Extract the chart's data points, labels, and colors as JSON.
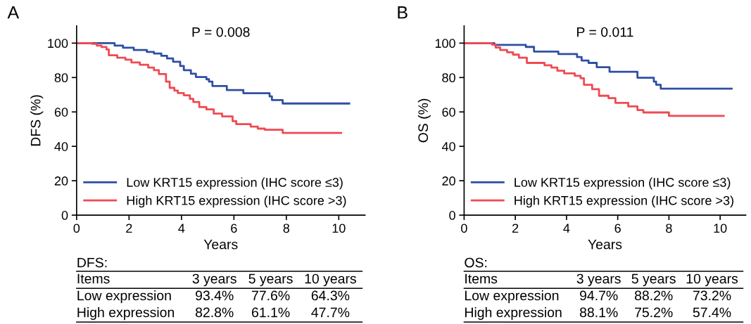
{
  "chart_data": [
    {
      "type": "step",
      "title": "A",
      "xlabel": "Years",
      "ylabel": "DFS (%)",
      "xlim": [
        0,
        11
      ],
      "ylim": [
        0,
        110
      ],
      "xticks": [
        0,
        2,
        4,
        6,
        8,
        10
      ],
      "yticks": [
        0,
        20,
        40,
        60,
        80,
        100
      ],
      "grid": false,
      "legend": "bottom left",
      "series": [
        {
          "name": "Low KRT15 expression (IHC score ≤3)",
          "color": "#2f4fa3",
          "x": [
            0,
            1.45,
            1.77,
            2.18,
            2.68,
            2.95,
            3.23,
            3.45,
            3.68,
            3.95,
            4.09,
            4.36,
            4.55,
            4.95,
            5.05,
            5.18,
            5.73,
            6.36,
            7.36,
            7.45,
            7.86,
            10.4
          ],
          "values": [
            100,
            98.6,
            97.3,
            96.0,
            94.9,
            94.0,
            92.6,
            91.1,
            89.2,
            86.7,
            84.3,
            82.2,
            80.3,
            79.0,
            77.6,
            75.1,
            72.7,
            70.9,
            69.0,
            66.9,
            64.9,
            64.9
          ]
        },
        {
          "name": "High KRT15 expression (IHC score >3)",
          "color": "#ef4a52",
          "x": [
            0,
            0.59,
            0.77,
            0.95,
            1.14,
            1.23,
            1.55,
            1.86,
            2.09,
            2.41,
            2.73,
            2.95,
            3.14,
            3.41,
            3.55,
            3.73,
            3.86,
            4.09,
            4.32,
            4.45,
            4.68,
            4.95,
            5.23,
            5.55,
            5.95,
            6.09,
            6.64,
            6.91,
            7.18,
            7.86,
            10.09
          ],
          "values": [
            100,
            99.6,
            98.6,
            97.7,
            96.3,
            92.9,
            91.5,
            90.4,
            88.8,
            87.4,
            85.8,
            84.3,
            82.0,
            77.6,
            74.0,
            72.4,
            71.0,
            69.7,
            67.6,
            65.8,
            62.8,
            61.5,
            59.0,
            57.4,
            54.6,
            52.9,
            51.5,
            50.3,
            49.6,
            47.8,
            47.8
          ]
        }
      ],
      "annotations": [
        "P = 0.008",
        "DFS:",
        "Items",
        "3 years",
        "5 years",
        "10 years",
        "Low expression",
        "93.4%",
        "77.6%",
        "64.3%",
        "High expression",
        "82.8%",
        "61.1%",
        "47.7%"
      ]
    },
    {
      "type": "step",
      "title": "B",
      "xlabel": "Years",
      "ylabel": "OS (%)",
      "xlim": [
        0,
        11
      ],
      "ylim": [
        0,
        110
      ],
      "xticks": [
        0,
        2,
        4,
        6,
        8,
        10
      ],
      "yticks": [
        0,
        20,
        40,
        60,
        80,
        100
      ],
      "grid": false,
      "legend": "bottom left",
      "series": [
        {
          "name": "Low KRT15 expression (IHC score ≤3)",
          "color": "#2f4fa3",
          "x": [
            0,
            1.18,
            2.41,
            2.73,
            3.68,
            4.41,
            4.59,
            4.86,
            5.18,
            5.68,
            6.77,
            7.41,
            7.5,
            7.68,
            10.45
          ],
          "values": [
            100,
            99.0,
            97.8,
            95.1,
            93.7,
            91.9,
            89.9,
            88.5,
            86.0,
            83.3,
            79.9,
            77.6,
            75.8,
            73.5,
            73.5
          ]
        },
        {
          "name": "High KRT15 expression (IHC score >3)",
          "color": "#ef4a52",
          "x": [
            0,
            1.09,
            1.23,
            1.41,
            1.68,
            1.91,
            2.14,
            2.45,
            3.14,
            3.41,
            3.64,
            3.91,
            4.32,
            4.55,
            4.68,
            5.0,
            5.27,
            5.64,
            5.91,
            6.41,
            6.77,
            7.0,
            8.0,
            10.14
          ],
          "values": [
            100,
            99.2,
            97.4,
            96.0,
            94.7,
            93.3,
            91.5,
            88.5,
            87.1,
            85.8,
            84.0,
            82.4,
            81.0,
            79.6,
            75.8,
            73.2,
            69.4,
            68.0,
            65.3,
            63.2,
            61.1,
            59.7,
            57.7,
            57.7
          ]
        }
      ],
      "annotations": [
        "P = 0.011",
        "OS:",
        "Items",
        "3 years",
        "5 years",
        "10 years",
        "Low expression",
        "94.7%",
        "88.2%",
        "73.2%",
        "High expression",
        "88.1%",
        "75.2%",
        "57.4%"
      ]
    }
  ]
}
